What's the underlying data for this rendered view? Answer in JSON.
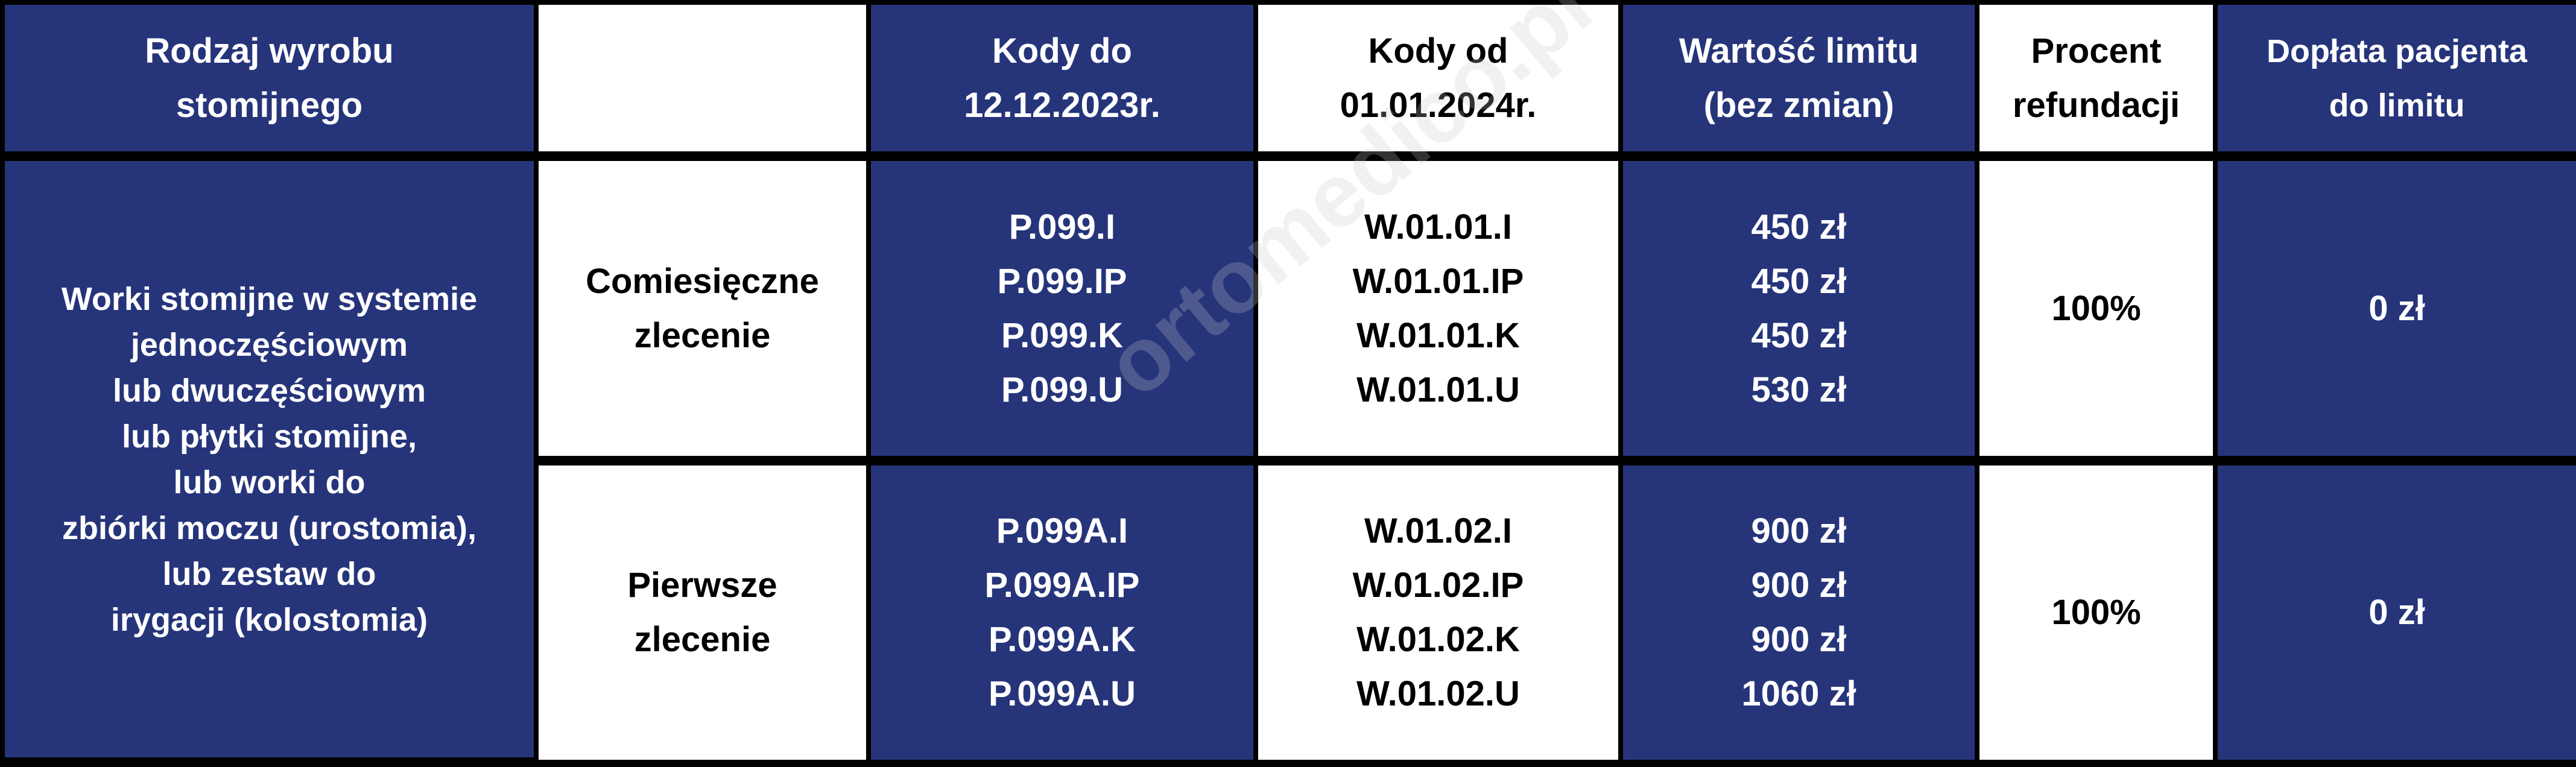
{
  "header": {
    "col1": [
      "Rodzaj wyrobu",
      "stomijnego"
    ],
    "col2": "",
    "col3": [
      "Kody do",
      "12.12.2023r."
    ],
    "col4": [
      "Kody od",
      "01.01.2024r."
    ],
    "col5": [
      "Wartość limitu",
      "(bez zmian)"
    ],
    "col6": [
      "Procent",
      "refundacji"
    ],
    "col7": [
      "Dopłata pacjenta",
      "do limitu"
    ]
  },
  "product": [
    "Worki stomijne w systemie",
    "jednoczęściowym",
    "lub dwuczęściowym",
    "lub płytki stomijne,",
    "lub worki do",
    "zbiórki moczu (urostomia),",
    "lub zestaw do",
    "irygacji (kolostomia)"
  ],
  "rows": [
    {
      "order": [
        "Comiesięczne",
        "zlecenie"
      ],
      "old_codes": [
        "P.099.I",
        "P.099.IP",
        "P.099.K",
        "P.099.U"
      ],
      "new_codes": [
        "W.01.01.I",
        "W.01.01.IP",
        "W.01.01.K",
        "W.01.01.U"
      ],
      "limits": [
        "450 zł",
        "450 zł",
        "450 zł",
        "530 zł"
      ],
      "refund": "100%",
      "copay": "0 zł"
    },
    {
      "order": [
        "Pierwsze",
        "zlecenie"
      ],
      "old_codes": [
        "P.099A.I",
        "P.099A.IP",
        "P.099A.K",
        "P.099A.U"
      ],
      "new_codes": [
        "W.01.02.I",
        "W.01.02.IP",
        "W.01.02.K",
        "W.01.02.U"
      ],
      "limits": [
        "900 zł",
        "900 zł",
        "900 zł",
        "1060 zł"
      ],
      "refund": "100%",
      "copay": "0 zł"
    }
  ],
  "watermark": "ortomedico.pl",
  "colors": {
    "navy": "#26357a",
    "white": "#ffffff",
    "border": "#000000"
  }
}
